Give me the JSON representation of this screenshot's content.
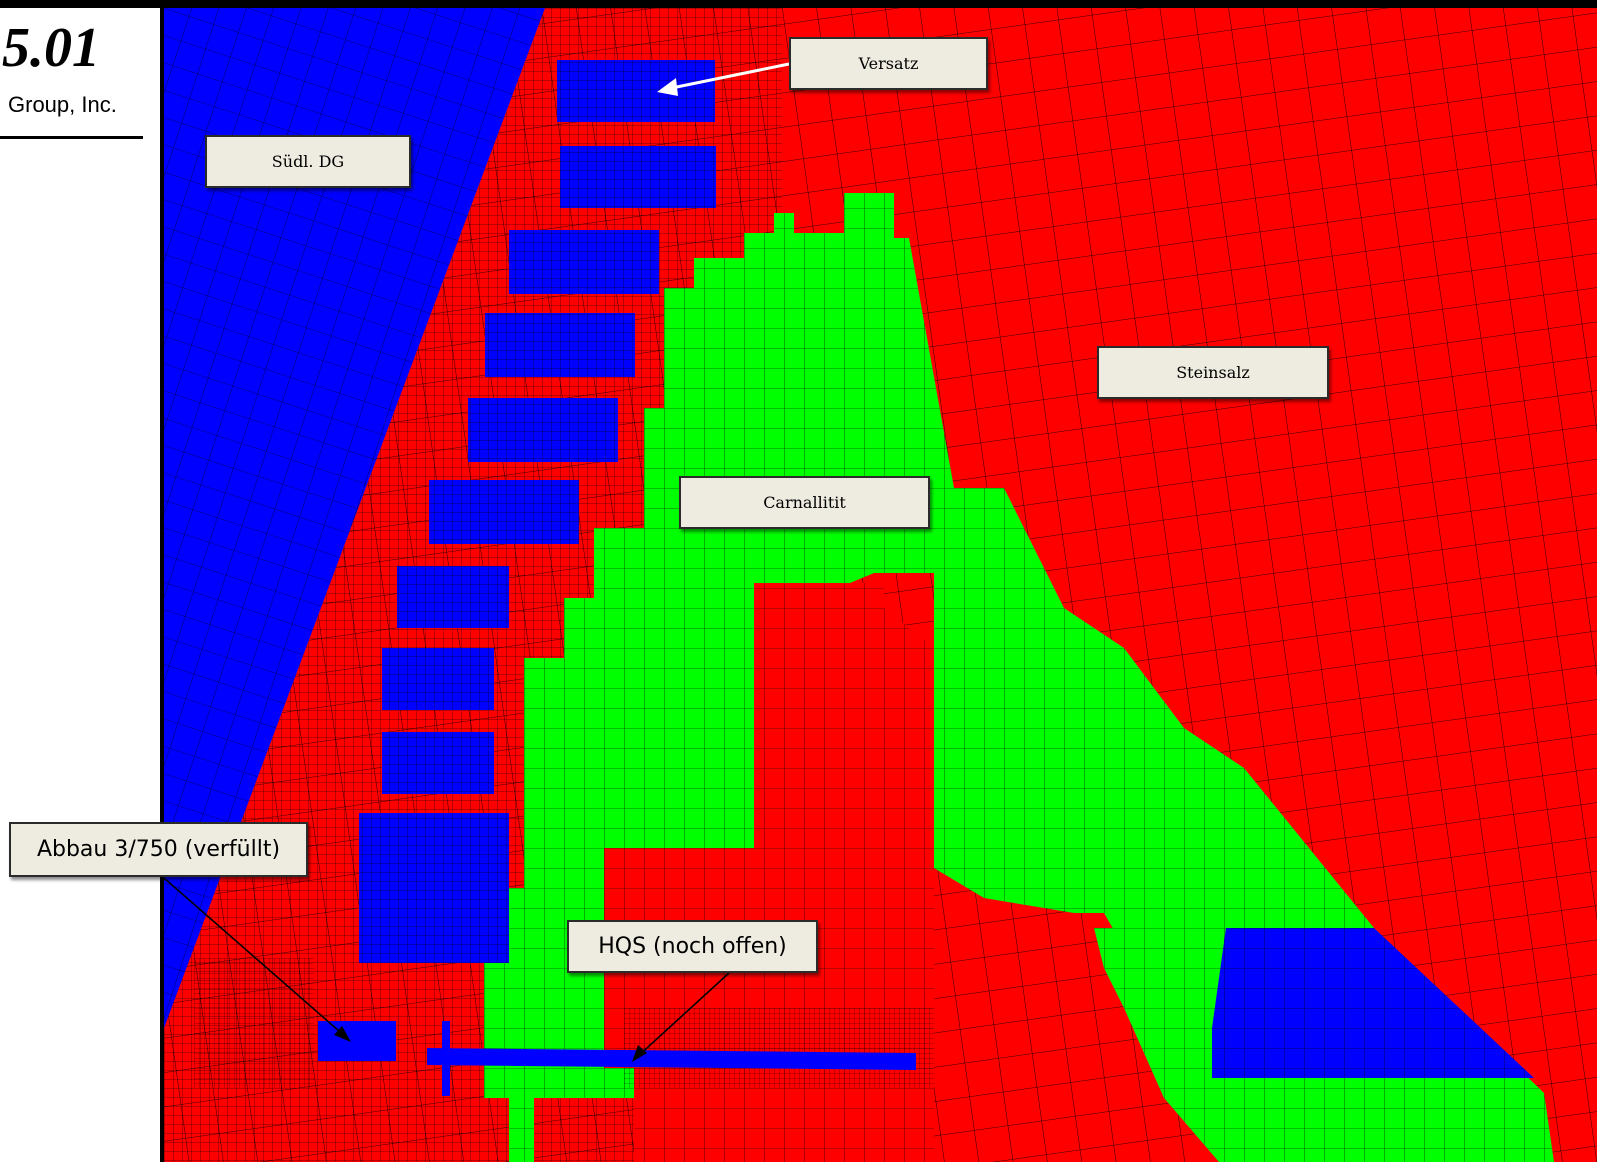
{
  "logo": {
    "version": "5.01",
    "company": "Group, Inc."
  },
  "labels": {
    "versatz": "Versatz",
    "suedl_dg": "Südl. DG",
    "steinsalz": "Steinsalz",
    "carnallitit": "Carnallitit",
    "abbau": "Abbau 3/750 (verfüllt)",
    "hqs": "HQS (noch offen)"
  },
  "colors": {
    "blue": "#0000ff",
    "red": "#ff0000",
    "green": "#00ff00",
    "mesh_line": "#000000",
    "label_fill": "#eeece1",
    "arrow_versatz": "#ffffff",
    "arrow_other": "#000000"
  }
}
